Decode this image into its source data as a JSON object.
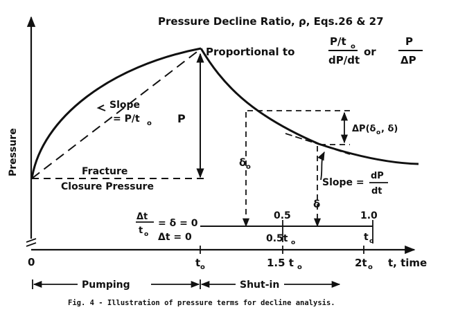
{
  "figure": {
    "header": {
      "line1": "Pressure Decline Ratio, ρ, Eqs.26 & 27",
      "proportional": "Proportional to",
      "frac1_num": "P/t",
      "frac1_num_sub": "o",
      "frac1_den": "dP/dt",
      "or": "or",
      "frac2_num": "P",
      "frac2_den": "ΔP"
    },
    "y_axis_label": "Pressure",
    "left_slope": {
      "line1": "Slope",
      "line2": "= P/t",
      "line2_sub": "o"
    },
    "p_label": "P",
    "closure": {
      "line1": "Fracture",
      "line2": "Closure Pressure"
    },
    "delta_o": {
      "main": "δ",
      "sub": "o"
    },
    "delta": "δ",
    "delta_p": {
      "main": "ΔP(δ",
      "sub": "o",
      "tail": ", δ)"
    },
    "right_slope": {
      "label": "Slope =",
      "num": "dP",
      "den": "dt"
    },
    "dimensionless": {
      "lhs_num": "Δt",
      "lhs_den": "t",
      "lhs_den_sub": "o",
      "lhs_eq": "= δ = 0",
      "tick_05": "0.5",
      "tick_10": "1.0"
    },
    "dt_row": {
      "lhs": "Δt = 0",
      "mid": "0.5t",
      "mid_sub": "o",
      "end": "t",
      "end_sub": "o"
    },
    "time_axis": {
      "zero": "0",
      "to": "t",
      "to_sub": "o",
      "one_five": "1.5 t",
      "one_five_sub": "o",
      "two": "2t",
      "two_sub": "o",
      "label": "t, time"
    },
    "phases": {
      "pumping": "Pumping",
      "shutin": "Shut-in"
    },
    "caption": "Fig. 4 - Illustration of pressure terms for decline analysis."
  }
}
